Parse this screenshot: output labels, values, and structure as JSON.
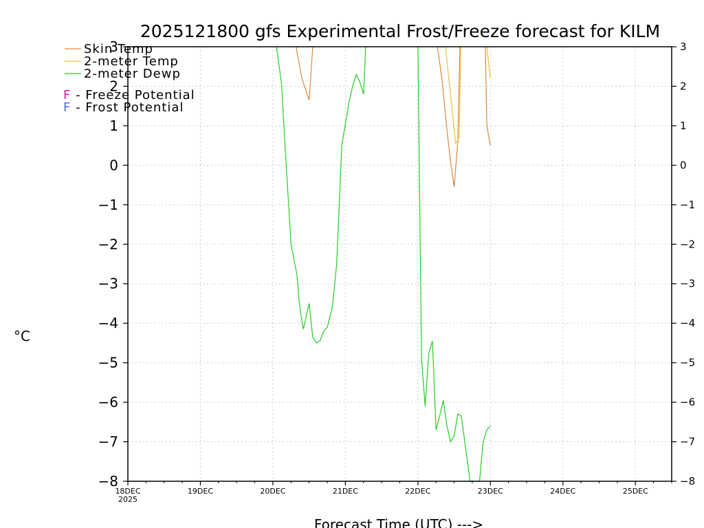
{
  "chart_data": {
    "type": "line",
    "title": "2025121800 gfs Experimental Frost/Freeze forecast for KILM",
    "xlabel": "Forecast Time (UTC) --->",
    "ylabel": "°C",
    "ylim": [
      -8,
      3
    ],
    "xlim": [
      0,
      7.5
    ],
    "yticks": [
      "3",
      "2",
      "1",
      "0",
      "−1",
      "−2",
      "−3",
      "−4",
      "−5",
      "−6",
      "−7",
      "−8"
    ],
    "yticks_right": [
      "3",
      "2",
      "1",
      "0",
      "−1",
      "−2",
      "−3",
      "−4",
      "−5",
      "−6",
      "−7",
      "−8"
    ],
    "xticks": [
      "18DEC",
      "19DEC",
      "20DEC",
      "21DEC",
      "22DEC",
      "23DEC",
      "24DEC",
      "25DEC"
    ],
    "xtick_year": "2025",
    "grid": true,
    "legend_position": "top-left",
    "legend": [
      {
        "label": "Skin Temp",
        "color": "#d9873f"
      },
      {
        "label": "2-meter Temp",
        "color": "#e8c23a"
      },
      {
        "label": "2-meter Dewp",
        "color": "#22cc22"
      }
    ],
    "annotations": [
      {
        "letter": "F",
        "text": " - Freeze Potential",
        "color": "#cc2299"
      },
      {
        "letter": "F",
        "text": " - Frost Potential",
        "color": "#5566ee"
      }
    ],
    "series": [
      {
        "name": "Skin Temp",
        "color": "#d9873f",
        "x": [
          2.32,
          2.4,
          2.5,
          2.55
        ],
        "y": [
          3.0,
          2.2,
          1.65,
          3.0
        ]
      },
      {
        "name": "Skin Temp",
        "color": "#d9873f",
        "x": [
          4.27,
          4.33,
          4.4,
          4.45,
          4.5,
          4.55,
          4.58
        ],
        "y": [
          3.0,
          2.2,
          0.9,
          0.1,
          -0.55,
          0.6,
          3.0
        ]
      },
      {
        "name": "Skin Temp",
        "color": "#d9873f",
        "x": [
          4.93,
          4.95,
          5.0
        ],
        "y": [
          3.0,
          1.0,
          0.5
        ]
      },
      {
        "name": "2-meter Temp",
        "color": "#e8c23a",
        "x": [
          4.38,
          4.45,
          4.52,
          4.57,
          4.59
        ],
        "y": [
          3.0,
          1.8,
          0.55,
          0.7,
          3.0
        ]
      },
      {
        "name": "2-meter Temp",
        "color": "#e8c23a",
        "x": [
          4.95,
          5.0
        ],
        "y": [
          3.0,
          2.2
        ]
      },
      {
        "name": "2-meter Dewp",
        "color": "#22cc22",
        "x": [
          2.05,
          2.08,
          2.12,
          2.17,
          2.25,
          2.33,
          2.37,
          2.42,
          2.5,
          2.55,
          2.6,
          2.65,
          2.7,
          2.75,
          2.82,
          2.88,
          2.95,
          3.0,
          3.05,
          3.1,
          3.15,
          3.2,
          3.25,
          3.28
        ],
        "y": [
          3.0,
          2.6,
          2.05,
          0.4,
          -2.0,
          -2.75,
          -3.6,
          -4.15,
          -3.5,
          -4.35,
          -4.5,
          -4.45,
          -4.2,
          -4.1,
          -3.6,
          -2.5,
          0.5,
          1.05,
          1.6,
          2.0,
          2.3,
          2.1,
          1.8,
          3.0
        ]
      },
      {
        "name": "2-meter Dewp",
        "color": "#22cc22",
        "x": [
          4.0,
          4.05,
          4.1,
          4.15,
          4.2,
          4.25,
          4.3,
          4.35,
          4.4,
          4.45,
          4.5,
          4.55,
          4.6,
          4.65,
          4.72,
          4.8,
          4.85,
          4.9,
          4.95,
          5.0
        ],
        "y": [
          3.0,
          -4.9,
          -6.1,
          -4.75,
          -4.45,
          -6.7,
          -6.35,
          -5.95,
          -6.6,
          -7.0,
          -6.85,
          -6.3,
          -6.35,
          -7.05,
          -8.0,
          -8.0,
          -8.0,
          -7.0,
          -6.7,
          -6.6
        ]
      }
    ]
  }
}
